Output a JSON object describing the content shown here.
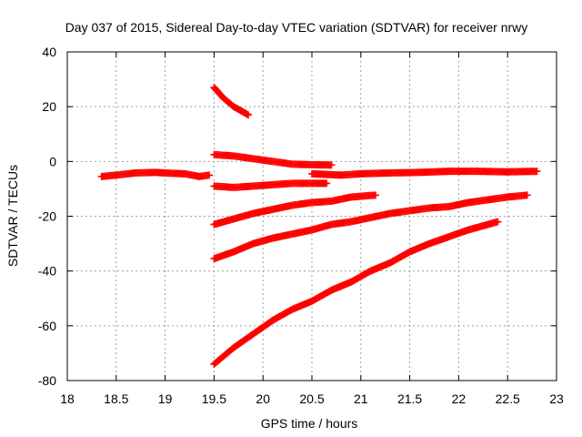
{
  "chart_data": {
    "type": "scatter",
    "title": "Day 037 of 2015, Sidereal Day-to-day VTEC variation (SDTVAR) for receiver nrwy",
    "xlabel": "GPS time / hours",
    "ylabel": "SDTVAR / TECUs",
    "xlim": [
      18,
      23
    ],
    "ylim": [
      -80,
      40
    ],
    "xticks": [
      "18",
      "18.5",
      "19",
      "19.5",
      "20",
      "20.5",
      "21",
      "21.5",
      "22",
      "22.5",
      "23"
    ],
    "yticks": [
      "-80",
      "-60",
      "-40",
      "-20",
      "0",
      "20",
      "40"
    ],
    "grid": true,
    "legend": "none",
    "marker": "plus",
    "color": "#ff0000",
    "series": [
      {
        "points": [
          [
            18.35,
            -5.5
          ],
          [
            18.5,
            -5
          ],
          [
            18.7,
            -4.2
          ],
          [
            18.9,
            -4
          ],
          [
            19.05,
            -4.3
          ],
          [
            19.2,
            -4.5
          ],
          [
            19.35,
            -5.5
          ],
          [
            19.45,
            -5
          ]
        ]
      },
      {
        "points": [
          [
            19.5,
            27
          ],
          [
            19.6,
            23
          ],
          [
            19.7,
            20
          ],
          [
            19.85,
            17
          ]
        ]
      },
      {
        "points": [
          [
            19.5,
            2.5
          ],
          [
            19.7,
            2
          ],
          [
            19.9,
            1
          ],
          [
            20.1,
            0
          ],
          [
            20.3,
            -1
          ],
          [
            20.5,
            -1.2
          ],
          [
            20.7,
            -1.3
          ]
        ]
      },
      {
        "points": [
          [
            19.5,
            -9
          ],
          [
            19.7,
            -9.5
          ],
          [
            19.9,
            -9
          ],
          [
            20.1,
            -8.5
          ],
          [
            20.3,
            -8
          ],
          [
            20.5,
            -8
          ],
          [
            20.65,
            -8
          ]
        ]
      },
      {
        "points": [
          [
            20.5,
            -4.5
          ],
          [
            20.8,
            -5
          ],
          [
            21.0,
            -4.5
          ],
          [
            21.3,
            -4.2
          ],
          [
            21.6,
            -4
          ],
          [
            21.9,
            -3.6
          ],
          [
            22.2,
            -3.6
          ],
          [
            22.5,
            -3.8
          ],
          [
            22.8,
            -3.6
          ]
        ]
      },
      {
        "points": [
          [
            19.5,
            -23
          ],
          [
            19.7,
            -21
          ],
          [
            19.9,
            -19
          ],
          [
            20.1,
            -17.5
          ],
          [
            20.3,
            -16
          ],
          [
            20.5,
            -15
          ],
          [
            20.7,
            -14.5
          ],
          [
            20.9,
            -13
          ],
          [
            21.15,
            -12.3
          ]
        ]
      },
      {
        "points": [
          [
            19.5,
            -35.5
          ],
          [
            19.7,
            -33
          ],
          [
            19.9,
            -30
          ],
          [
            20.1,
            -28
          ],
          [
            20.3,
            -26.5
          ],
          [
            20.5,
            -25
          ],
          [
            20.7,
            -23
          ],
          [
            20.9,
            -22
          ],
          [
            21.1,
            -20.5
          ],
          [
            21.3,
            -19
          ],
          [
            21.5,
            -18
          ],
          [
            21.7,
            -17
          ],
          [
            21.9,
            -16.5
          ],
          [
            22.1,
            -15
          ],
          [
            22.3,
            -14
          ],
          [
            22.5,
            -13
          ],
          [
            22.7,
            -12.3
          ]
        ]
      },
      {
        "points": [
          [
            19.5,
            -74
          ],
          [
            19.7,
            -68
          ],
          [
            19.9,
            -63
          ],
          [
            20.1,
            -58
          ],
          [
            20.3,
            -54
          ],
          [
            20.5,
            -51
          ],
          [
            20.7,
            -47
          ],
          [
            20.9,
            -44
          ],
          [
            21.1,
            -40
          ],
          [
            21.3,
            -37
          ],
          [
            21.5,
            -33
          ],
          [
            21.7,
            -30
          ],
          [
            21.9,
            -27.5
          ],
          [
            22.1,
            -25
          ],
          [
            22.3,
            -23
          ],
          [
            22.4,
            -22
          ]
        ]
      }
    ]
  }
}
